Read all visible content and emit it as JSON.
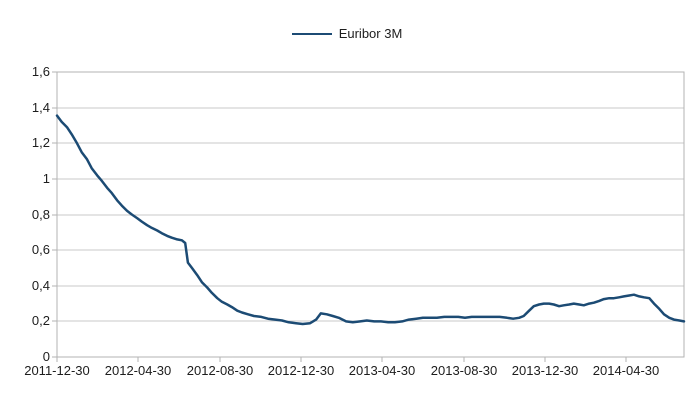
{
  "chart_data": {
    "type": "line",
    "title": "",
    "legend": {
      "position": "top",
      "label": "Euribor 3M"
    },
    "colors": {
      "series": "#1c4b74",
      "grid": "#c9c9c9",
      "frame": "#b3b3b3",
      "text": "#1d1d1d",
      "background": "#ffffff"
    },
    "x_axis": {
      "type": "date",
      "domain": [
        "2011-12-30",
        "2014-07-26"
      ],
      "tick_labels": [
        "2011-12-30",
        "2012-04-30",
        "2012-08-30",
        "2012-12-30",
        "2013-04-30",
        "2013-08-30",
        "2013-12-30",
        "2014-04-30"
      ]
    },
    "y_axis": {
      "min": 0,
      "max": 1.6,
      "tick_interval": 0.2,
      "tick_values": [
        0,
        0.2,
        0.4,
        0.6,
        0.8,
        1,
        1.2,
        1.4,
        1.6
      ],
      "tick_labels": [
        "0",
        "0,2",
        "0,4",
        "0,6",
        "0,8",
        "1",
        "1,2",
        "1,4",
        "1,6"
      ],
      "grid": true
    },
    "series": [
      {
        "name": "Euribor 3M",
        "points": [
          [
            "2011-12-30",
            1.355
          ],
          [
            "2012-01-06",
            1.32
          ],
          [
            "2012-01-14",
            1.29
          ],
          [
            "2012-01-21",
            1.25
          ],
          [
            "2012-01-29",
            1.2
          ],
          [
            "2012-02-05",
            1.15
          ],
          [
            "2012-02-13",
            1.11
          ],
          [
            "2012-02-20",
            1.06
          ],
          [
            "2012-02-28",
            1.02
          ],
          [
            "2012-03-06",
            0.99
          ],
          [
            "2012-03-14",
            0.95
          ],
          [
            "2012-03-21",
            0.92
          ],
          [
            "2012-03-29",
            0.88
          ],
          [
            "2012-04-05",
            0.85
          ],
          [
            "2012-04-13",
            0.82
          ],
          [
            "2012-04-20",
            0.8
          ],
          [
            "2012-04-28",
            0.78
          ],
          [
            "2012-05-05",
            0.76
          ],
          [
            "2012-05-13",
            0.74
          ],
          [
            "2012-05-20",
            0.725
          ],
          [
            "2012-05-28",
            0.71
          ],
          [
            "2012-06-04",
            0.695
          ],
          [
            "2012-06-12",
            0.68
          ],
          [
            "2012-06-19",
            0.67
          ],
          [
            "2012-06-27",
            0.66
          ],
          [
            "2012-07-04",
            0.655
          ],
          [
            "2012-07-09",
            0.64
          ],
          [
            "2012-07-13",
            0.53
          ],
          [
            "2012-07-19",
            0.5
          ],
          [
            "2012-07-27",
            0.46
          ],
          [
            "2012-08-03",
            0.42
          ],
          [
            "2012-08-11",
            0.39
          ],
          [
            "2012-08-18",
            0.36
          ],
          [
            "2012-08-26",
            0.33
          ],
          [
            "2012-09-02",
            0.31
          ],
          [
            "2012-09-10",
            0.295
          ],
          [
            "2012-09-17",
            0.28
          ],
          [
            "2012-09-25",
            0.26
          ],
          [
            "2012-10-02",
            0.25
          ],
          [
            "2012-10-11",
            0.24
          ],
          [
            "2012-10-20",
            0.23
          ],
          [
            "2012-10-31",
            0.225
          ],
          [
            "2012-11-10",
            0.215
          ],
          [
            "2012-11-21",
            0.21
          ],
          [
            "2012-12-01",
            0.205
          ],
          [
            "2012-12-11",
            0.195
          ],
          [
            "2012-12-22",
            0.19
          ],
          [
            "2013-01-01",
            0.185
          ],
          [
            "2013-01-12",
            0.19
          ],
          [
            "2013-01-21",
            0.21
          ],
          [
            "2013-01-28",
            0.245
          ],
          [
            "2013-02-06",
            0.24
          ],
          [
            "2013-02-15",
            0.23
          ],
          [
            "2013-02-24",
            0.22
          ],
          [
            "2013-03-07",
            0.2
          ],
          [
            "2013-03-17",
            0.195
          ],
          [
            "2013-03-28",
            0.2
          ],
          [
            "2013-04-07",
            0.205
          ],
          [
            "2013-04-18",
            0.2
          ],
          [
            "2013-04-28",
            0.2
          ],
          [
            "2013-05-09",
            0.195
          ],
          [
            "2013-05-19",
            0.195
          ],
          [
            "2013-05-30",
            0.2
          ],
          [
            "2013-06-09",
            0.21
          ],
          [
            "2013-06-20",
            0.215
          ],
          [
            "2013-06-30",
            0.22
          ],
          [
            "2013-07-11",
            0.22
          ],
          [
            "2013-07-21",
            0.22
          ],
          [
            "2013-08-01",
            0.225
          ],
          [
            "2013-08-11",
            0.225
          ],
          [
            "2013-08-22",
            0.225
          ],
          [
            "2013-09-01",
            0.22
          ],
          [
            "2013-09-11",
            0.225
          ],
          [
            "2013-09-22",
            0.225
          ],
          [
            "2013-10-02",
            0.225
          ],
          [
            "2013-10-13",
            0.225
          ],
          [
            "2013-10-23",
            0.225
          ],
          [
            "2013-11-03",
            0.22
          ],
          [
            "2013-11-12",
            0.215
          ],
          [
            "2013-11-21",
            0.22
          ],
          [
            "2013-11-28",
            0.23
          ],
          [
            "2013-12-06",
            0.26
          ],
          [
            "2013-12-13",
            0.285
          ],
          [
            "2013-12-21",
            0.295
          ],
          [
            "2013-12-28",
            0.3
          ],
          [
            "2014-01-05",
            0.3
          ],
          [
            "2014-01-12",
            0.295
          ],
          [
            "2014-01-20",
            0.285
          ],
          [
            "2014-01-27",
            0.29
          ],
          [
            "2014-02-04",
            0.295
          ],
          [
            "2014-02-11",
            0.3
          ],
          [
            "2014-02-19",
            0.295
          ],
          [
            "2014-02-26",
            0.29
          ],
          [
            "2014-03-06",
            0.3
          ],
          [
            "2014-03-13",
            0.305
          ],
          [
            "2014-03-21",
            0.315
          ],
          [
            "2014-03-28",
            0.325
          ],
          [
            "2014-04-05",
            0.33
          ],
          [
            "2014-04-12",
            0.33
          ],
          [
            "2014-04-20",
            0.335
          ],
          [
            "2014-04-27",
            0.34
          ],
          [
            "2014-05-05",
            0.345
          ],
          [
            "2014-05-12",
            0.35
          ],
          [
            "2014-05-20",
            0.34
          ],
          [
            "2014-05-27",
            0.335
          ],
          [
            "2014-06-04",
            0.33
          ],
          [
            "2014-06-11",
            0.3
          ],
          [
            "2014-06-19",
            0.27
          ],
          [
            "2014-06-26",
            0.24
          ],
          [
            "2014-07-04",
            0.22
          ],
          [
            "2014-07-11",
            0.21
          ],
          [
            "2014-07-19",
            0.205
          ],
          [
            "2014-07-26",
            0.2
          ]
        ]
      }
    ]
  }
}
